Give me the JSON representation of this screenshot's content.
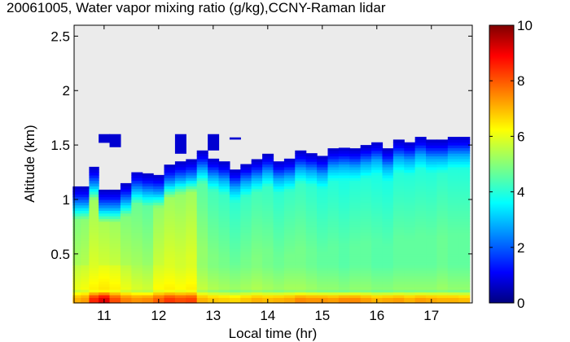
{
  "chart_data": {
    "type": "heatmap",
    "title": "20061005, Water vapor mixing ratio (g/kg),CCNY-Raman lidar",
    "xlabel": "Local time (hr)",
    "ylabel": "Altitude (km)",
    "xlim": [
      10.45,
      17.75
    ],
    "ylim": [
      0.05,
      2.6
    ],
    "xticks": [
      "11",
      "12",
      "13",
      "14",
      "15",
      "16",
      "17"
    ],
    "xtick_values": [
      11,
      12,
      13,
      14,
      15,
      16,
      17
    ],
    "yticks": [
      "0.5",
      "1",
      "1.5",
      "2",
      "2.5"
    ],
    "ytick_values": [
      0.5,
      1,
      1.5,
      2,
      2.5
    ],
    "colorbar": {
      "range": [
        0,
        10
      ],
      "ticks": [
        "0",
        "2",
        "4",
        "6",
        "8",
        "10"
      ],
      "tick_values": [
        0,
        2,
        4,
        6,
        8,
        10
      ],
      "colormap": "jet"
    },
    "no_data_color": "#ebebeb",
    "time": [
      10.5,
      10.65,
      10.8,
      11.0,
      11.2,
      11.4,
      11.6,
      11.8,
      12.0,
      12.2,
      12.4,
      12.6,
      12.8,
      13.0,
      13.2,
      13.4,
      13.6,
      13.8,
      14.0,
      14.2,
      14.4,
      14.6,
      14.8,
      15.0,
      15.2,
      15.4,
      15.6,
      15.8,
      16.0,
      16.2,
      16.4,
      16.6,
      16.8,
      17.0,
      17.2,
      17.4,
      17.6
    ],
    "data_top_km": [
      1.12,
      1.12,
      1.3,
      1.09,
      1.09,
      1.15,
      1.26,
      1.24,
      1.23,
      1.32,
      1.35,
      1.37,
      1.45,
      1.38,
      1.35,
      1.28,
      1.33,
      1.37,
      1.42,
      1.36,
      1.38,
      1.45,
      1.43,
      1.4,
      1.47,
      1.48,
      1.47,
      1.5,
      1.53,
      1.47,
      1.55,
      1.53,
      1.58,
      1.55,
      1.55,
      1.58,
      1.58
    ],
    "blob_tops_km": [
      null,
      null,
      null,
      1.6,
      1.6,
      null,
      null,
      null,
      null,
      null,
      1.6,
      null,
      null,
      1.6,
      null,
      1.57,
      null,
      null,
      null,
      null,
      null,
      null,
      null,
      null,
      null,
      null,
      null,
      null,
      null,
      null,
      null,
      null,
      null,
      null,
      null,
      null,
      null
    ],
    "blob_bottoms_km": [
      null,
      null,
      null,
      1.52,
      1.48,
      null,
      null,
      null,
      null,
      null,
      1.42,
      null,
      null,
      1.45,
      null,
      1.55,
      null,
      null,
      null,
      null,
      null,
      null,
      null,
      null,
      null,
      null,
      null,
      null,
      null,
      null,
      null,
      null,
      null,
      null,
      null,
      null,
      null
    ],
    "boundary_layer_value_gkg": [
      5.6,
      5.7,
      5.9,
      6.0,
      5.9,
      5.6,
      5.4,
      5.3,
      5.8,
      5.9,
      5.8,
      5.9,
      5.2,
      5.0,
      4.9,
      4.8,
      4.9,
      5.0,
      4.9,
      4.8,
      4.9,
      4.9,
      4.8,
      4.7,
      4.7,
      4.6,
      4.7,
      4.7,
      4.6,
      4.6,
      4.7,
      4.7,
      4.7,
      4.7,
      4.8,
      4.7,
      4.7
    ],
    "surface_value_gkg": [
      7.0,
      7.2,
      8.4,
      9.0,
      8.0,
      7.5,
      7.3,
      7.4,
      7.8,
      8.2,
      8.0,
      8.1,
      7.0,
      6.8,
      6.7,
      6.6,
      6.8,
      7.0,
      6.9,
      7.0,
      7.1,
      7.4,
      7.3,
      7.3,
      7.2,
      7.4,
      7.4,
      7.2,
      7.0,
      7.1,
      7.2,
      7.0,
      7.2,
      7.1,
      7.0,
      7.0,
      6.9
    ]
  }
}
